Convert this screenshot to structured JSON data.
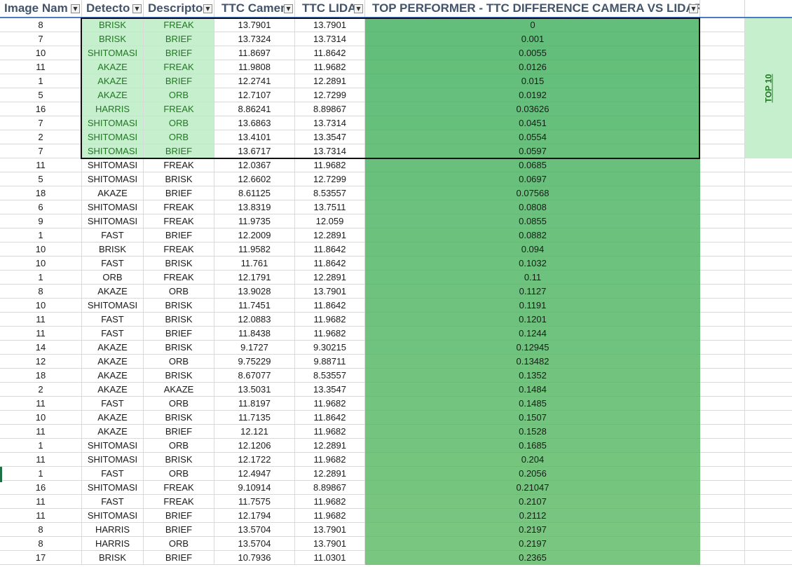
{
  "headers": {
    "image": "Image Nam",
    "detector": "Detecto",
    "descriptor": "Descripto",
    "ttc_camera": "TTC Camer",
    "ttc_lidar": "TTC LIDA",
    "difference": "TOP PERFORMER - TTC DIFFERENCE CAMERA VS LIDAR"
  },
  "top10_label": "TOP 10",
  "colors": {
    "diff_gradient_top": "#63be7b",
    "diff_gradient_bottom": "#79c680",
    "top10_fill": "#c6efce",
    "top10_text": "#1f7a1f",
    "header_text": "#44546a",
    "header_underline": "#4a7bc4"
  },
  "rows": [
    {
      "image": "8",
      "detector": "BRISK",
      "descriptor": "FREAK",
      "ttc_camera": "13.7901",
      "ttc_lidar": "13.7901",
      "difference": "0"
    },
    {
      "image": "7",
      "detector": "BRISK",
      "descriptor": "BRIEF",
      "ttc_camera": "13.7324",
      "ttc_lidar": "13.7314",
      "difference": "0.001"
    },
    {
      "image": "10",
      "detector": "SHITOMASI",
      "descriptor": "BRIEF",
      "ttc_camera": "11.8697",
      "ttc_lidar": "11.8642",
      "difference": "0.0055"
    },
    {
      "image": "11",
      "detector": "AKAZE",
      "descriptor": "FREAK",
      "ttc_camera": "11.9808",
      "ttc_lidar": "11.9682",
      "difference": "0.0126"
    },
    {
      "image": "1",
      "detector": "AKAZE",
      "descriptor": "BRIEF",
      "ttc_camera": "12.2741",
      "ttc_lidar": "12.2891",
      "difference": "0.015"
    },
    {
      "image": "5",
      "detector": "AKAZE",
      "descriptor": "ORB",
      "ttc_camera": "12.7107",
      "ttc_lidar": "12.7299",
      "difference": "0.0192"
    },
    {
      "image": "16",
      "detector": "HARRIS",
      "descriptor": "FREAK",
      "ttc_camera": "8.86241",
      "ttc_lidar": "8.89867",
      "difference": "0.03626"
    },
    {
      "image": "7",
      "detector": "SHITOMASI",
      "descriptor": "ORB",
      "ttc_camera": "13.6863",
      "ttc_lidar": "13.7314",
      "difference": "0.0451"
    },
    {
      "image": "2",
      "detector": "SHITOMASI",
      "descriptor": "ORB",
      "ttc_camera": "13.4101",
      "ttc_lidar": "13.3547",
      "difference": "0.0554"
    },
    {
      "image": "7",
      "detector": "SHITOMASI",
      "descriptor": "BRIEF",
      "ttc_camera": "13.6717",
      "ttc_lidar": "13.7314",
      "difference": "0.0597"
    },
    {
      "image": "11",
      "detector": "SHITOMASI",
      "descriptor": "FREAK",
      "ttc_camera": "12.0367",
      "ttc_lidar": "11.9682",
      "difference": "0.0685"
    },
    {
      "image": "5",
      "detector": "SHITOMASI",
      "descriptor": "BRISK",
      "ttc_camera": "12.6602",
      "ttc_lidar": "12.7299",
      "difference": "0.0697"
    },
    {
      "image": "18",
      "detector": "AKAZE",
      "descriptor": "BRIEF",
      "ttc_camera": "8.61125",
      "ttc_lidar": "8.53557",
      "difference": "0.07568"
    },
    {
      "image": "6",
      "detector": "SHITOMASI",
      "descriptor": "FREAK",
      "ttc_camera": "13.8319",
      "ttc_lidar": "13.7511",
      "difference": "0.0808"
    },
    {
      "image": "9",
      "detector": "SHITOMASI",
      "descriptor": "FREAK",
      "ttc_camera": "11.9735",
      "ttc_lidar": "12.059",
      "difference": "0.0855"
    },
    {
      "image": "1",
      "detector": "FAST",
      "descriptor": "BRIEF",
      "ttc_camera": "12.2009",
      "ttc_lidar": "12.2891",
      "difference": "0.0882"
    },
    {
      "image": "10",
      "detector": "BRISK",
      "descriptor": "FREAK",
      "ttc_camera": "11.9582",
      "ttc_lidar": "11.8642",
      "difference": "0.094"
    },
    {
      "image": "10",
      "detector": "FAST",
      "descriptor": "BRISK",
      "ttc_camera": "11.761",
      "ttc_lidar": "11.8642",
      "difference": "0.1032"
    },
    {
      "image": "1",
      "detector": "ORB",
      "descriptor": "FREAK",
      "ttc_camera": "12.1791",
      "ttc_lidar": "12.2891",
      "difference": "0.11"
    },
    {
      "image": "8",
      "detector": "AKAZE",
      "descriptor": "ORB",
      "ttc_camera": "13.9028",
      "ttc_lidar": "13.7901",
      "difference": "0.1127"
    },
    {
      "image": "10",
      "detector": "SHITOMASI",
      "descriptor": "BRISK",
      "ttc_camera": "11.7451",
      "ttc_lidar": "11.8642",
      "difference": "0.1191"
    },
    {
      "image": "11",
      "detector": "FAST",
      "descriptor": "BRISK",
      "ttc_camera": "12.0883",
      "ttc_lidar": "11.9682",
      "difference": "0.1201"
    },
    {
      "image": "11",
      "detector": "FAST",
      "descriptor": "BRIEF",
      "ttc_camera": "11.8438",
      "ttc_lidar": "11.9682",
      "difference": "0.1244"
    },
    {
      "image": "14",
      "detector": "AKAZE",
      "descriptor": "BRISK",
      "ttc_camera": "9.1727",
      "ttc_lidar": "9.30215",
      "difference": "0.12945"
    },
    {
      "image": "12",
      "detector": "AKAZE",
      "descriptor": "ORB",
      "ttc_camera": "9.75229",
      "ttc_lidar": "9.88711",
      "difference": "0.13482"
    },
    {
      "image": "18",
      "detector": "AKAZE",
      "descriptor": "BRISK",
      "ttc_camera": "8.67077",
      "ttc_lidar": "8.53557",
      "difference": "0.1352"
    },
    {
      "image": "2",
      "detector": "AKAZE",
      "descriptor": "AKAZE",
      "ttc_camera": "13.5031",
      "ttc_lidar": "13.3547",
      "difference": "0.1484"
    },
    {
      "image": "11",
      "detector": "FAST",
      "descriptor": "ORB",
      "ttc_camera": "11.8197",
      "ttc_lidar": "11.9682",
      "difference": "0.1485"
    },
    {
      "image": "10",
      "detector": "AKAZE",
      "descriptor": "BRISK",
      "ttc_camera": "11.7135",
      "ttc_lidar": "11.8642",
      "difference": "0.1507"
    },
    {
      "image": "11",
      "detector": "AKAZE",
      "descriptor": "BRIEF",
      "ttc_camera": "12.121",
      "ttc_lidar": "11.9682",
      "difference": "0.1528"
    },
    {
      "image": "1",
      "detector": "SHITOMASI",
      "descriptor": "ORB",
      "ttc_camera": "12.1206",
      "ttc_lidar": "12.2891",
      "difference": "0.1685"
    },
    {
      "image": "11",
      "detector": "SHITOMASI",
      "descriptor": "BRISK",
      "ttc_camera": "12.1722",
      "ttc_lidar": "11.9682",
      "difference": "0.204"
    },
    {
      "image": "1",
      "detector": "FAST",
      "descriptor": "ORB",
      "ttc_camera": "12.4947",
      "ttc_lidar": "12.2891",
      "difference": "0.2056"
    },
    {
      "image": "16",
      "detector": "SHITOMASI",
      "descriptor": "FREAK",
      "ttc_camera": "9.10914",
      "ttc_lidar": "8.89867",
      "difference": "0.21047"
    },
    {
      "image": "11",
      "detector": "FAST",
      "descriptor": "FREAK",
      "ttc_camera": "11.7575",
      "ttc_lidar": "11.9682",
      "difference": "0.2107"
    },
    {
      "image": "11",
      "detector": "SHITOMASI",
      "descriptor": "BRIEF",
      "ttc_camera": "12.1794",
      "ttc_lidar": "11.9682",
      "difference": "0.2112"
    },
    {
      "image": "8",
      "detector": "HARRIS",
      "descriptor": "BRIEF",
      "ttc_camera": "13.5704",
      "ttc_lidar": "13.7901",
      "difference": "0.2197"
    },
    {
      "image": "8",
      "detector": "HARRIS",
      "descriptor": "ORB",
      "ttc_camera": "13.5704",
      "ttc_lidar": "13.7901",
      "difference": "0.2197"
    },
    {
      "image": "17",
      "detector": "BRISK",
      "descriptor": "BRIEF",
      "ttc_camera": "10.7936",
      "ttc_lidar": "11.0301",
      "difference": "0.2365"
    }
  ]
}
